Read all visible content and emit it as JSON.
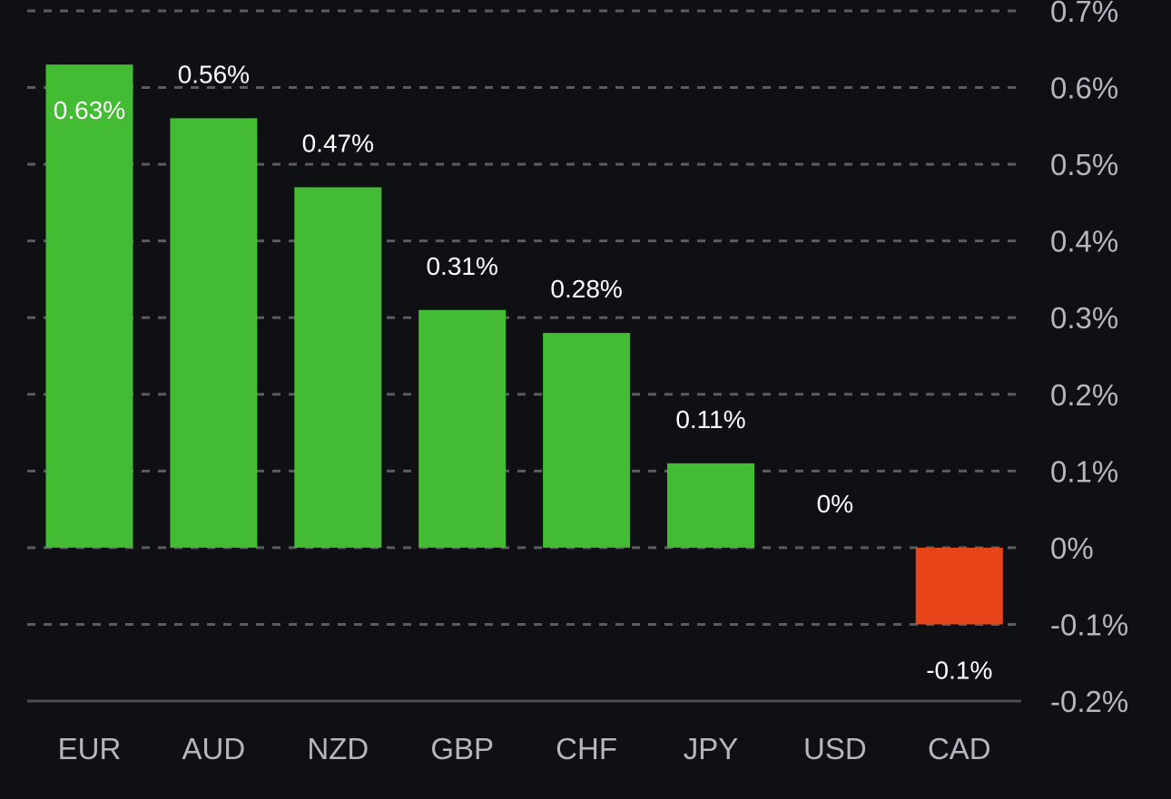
{
  "chart_data": {
    "type": "bar",
    "title": "",
    "xlabel": "",
    "ylabel": "",
    "categories": [
      "EUR",
      "AUD",
      "NZD",
      "GBP",
      "CHF",
      "JPY",
      "USD",
      "CAD"
    ],
    "values": [
      0.63,
      0.56,
      0.47,
      0.31,
      0.28,
      0.11,
      0,
      -0.1
    ],
    "data_labels": [
      "0.63%",
      "0.56%",
      "0.47%",
      "0.31%",
      "0.28%",
      "0.11%",
      "0%",
      "-0.1%"
    ],
    "ylim": [
      -0.2,
      0.7
    ],
    "yticks": [
      0.7,
      0.6,
      0.5,
      0.4,
      0.3,
      0.2,
      0.1,
      0,
      -0.1,
      -0.2
    ],
    "ytick_labels": [
      "0.7%",
      "0.6%",
      "0.5%",
      "0.4%",
      "0.3%",
      "0.2%",
      "0.1%",
      "0%",
      "-0.1%",
      "-0.2%"
    ],
    "y_axis_side": "right",
    "grid": true,
    "legend": "none",
    "colors": {
      "positive": "#43bc33",
      "negative": "#e8441a",
      "background": "#0f1013",
      "data_label": "#ffffff",
      "tick_label": "#b4b7bf",
      "gridline": "#5a5c61"
    }
  }
}
